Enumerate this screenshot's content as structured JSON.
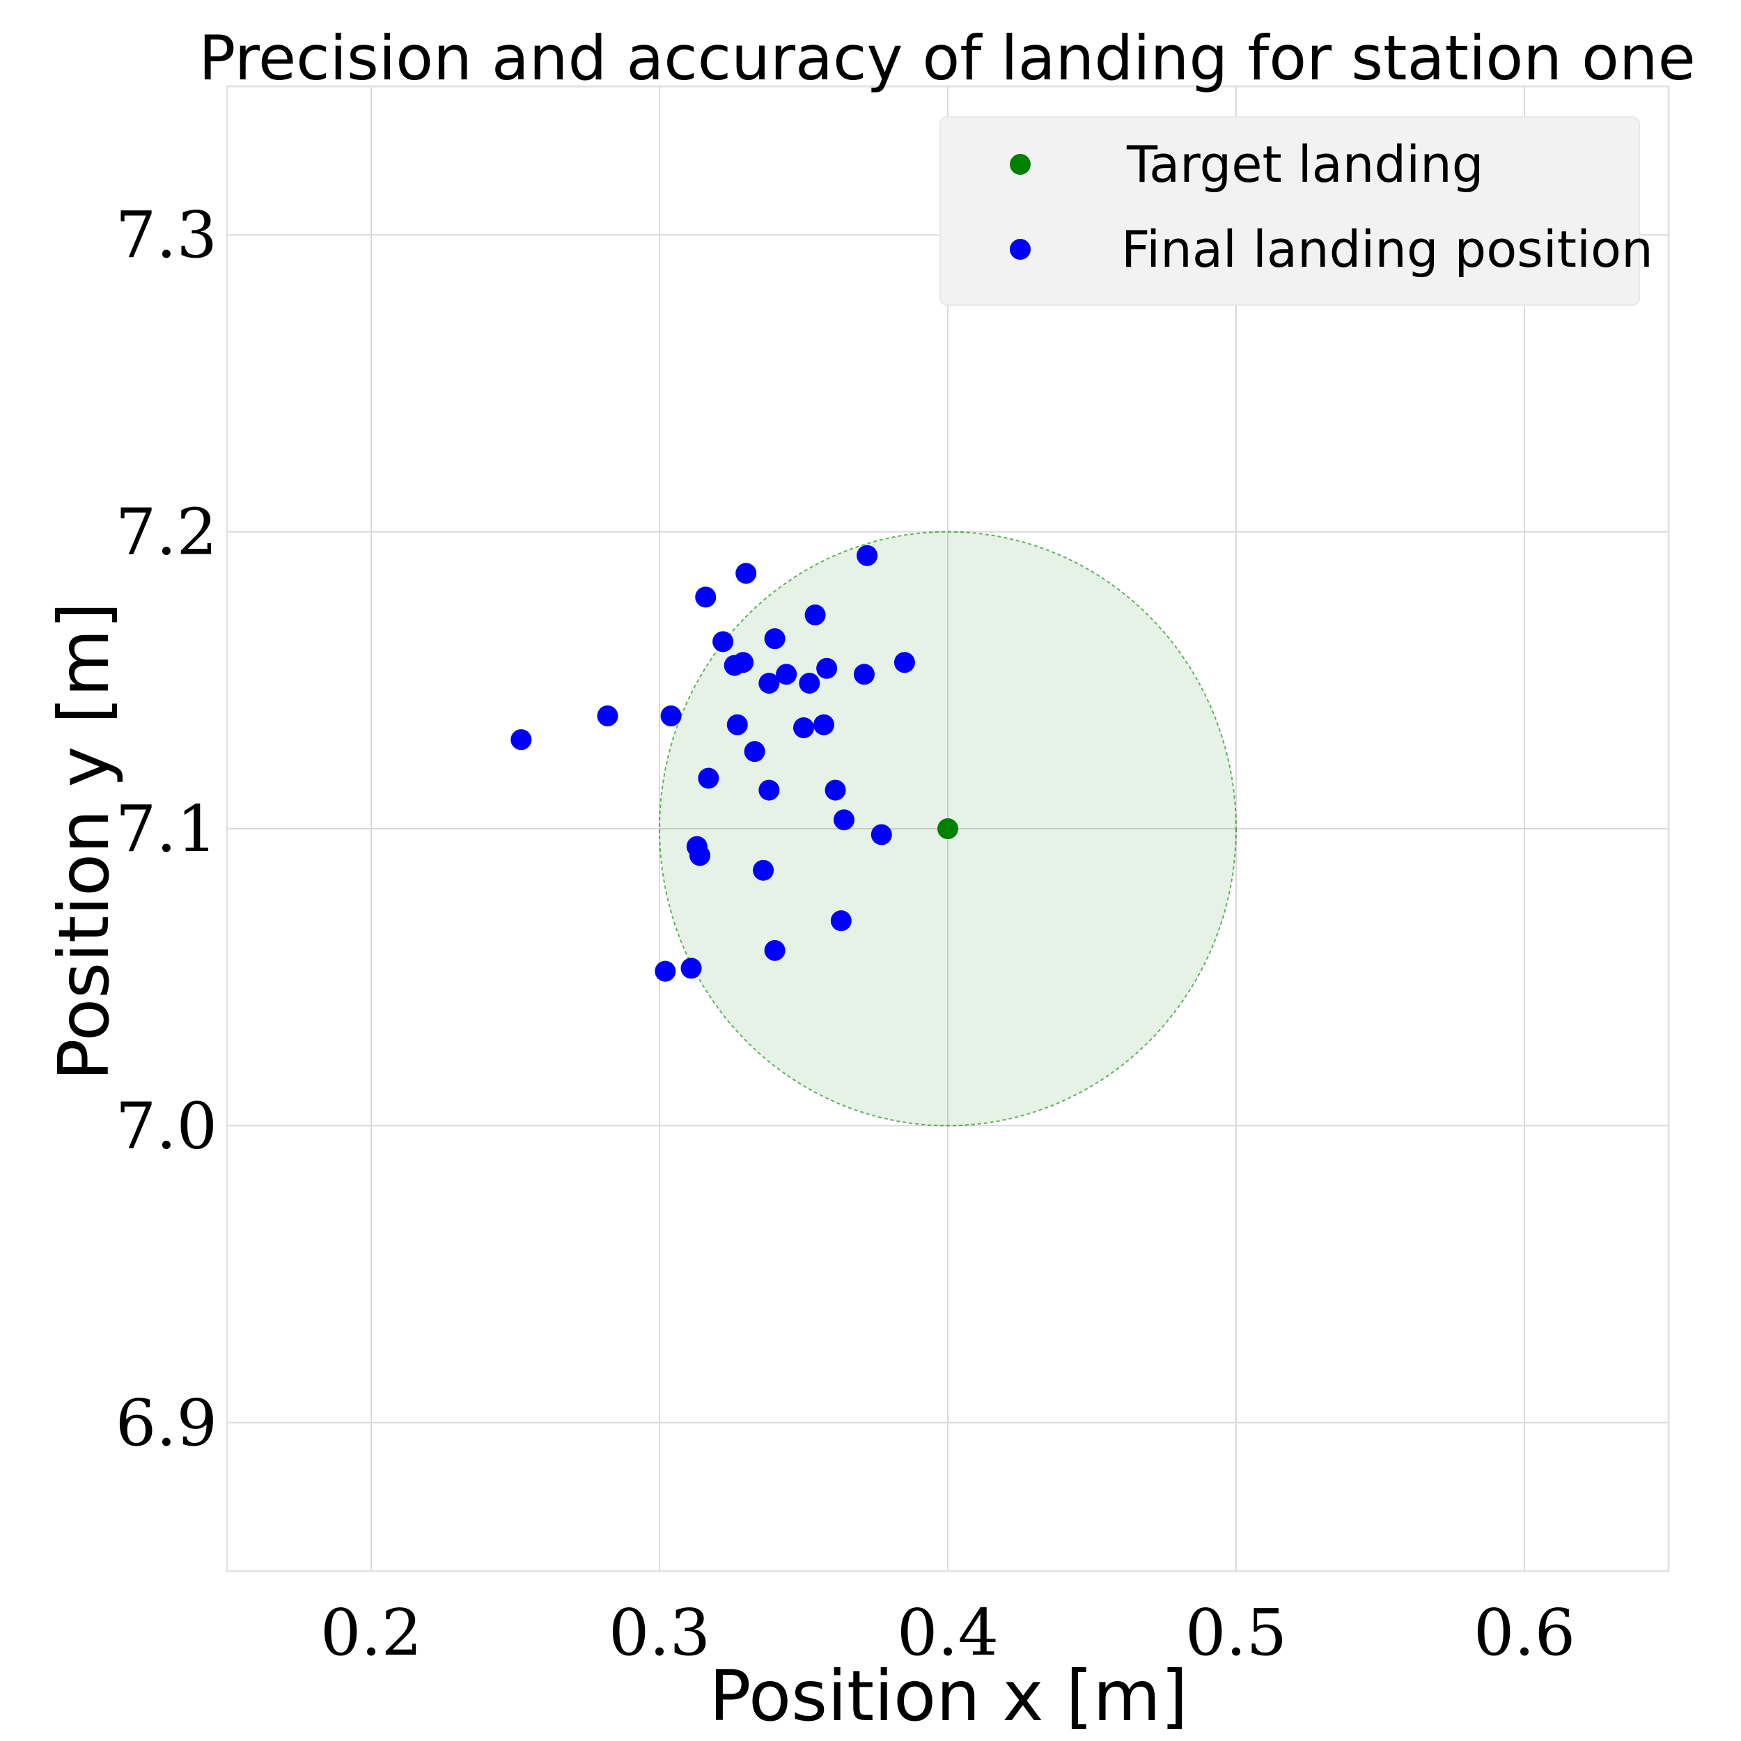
{
  "chart_data": {
    "type": "scatter",
    "title": "Precision and accuracy of landing for station one",
    "xlabel": "Position x [m]",
    "ylabel": "Position y [m]",
    "xlim": [
      0.15,
      0.65
    ],
    "ylim": [
      6.85,
      7.35
    ],
    "x_ticks": [
      "0.2",
      "0.3",
      "0.4",
      "0.5",
      "0.6"
    ],
    "x_tick_values": [
      0.2,
      0.3,
      0.4,
      0.5,
      0.6
    ],
    "y_ticks": [
      "6.9",
      "7.0",
      "7.1",
      "7.2",
      "7.3"
    ],
    "y_tick_values": [
      6.9,
      7.0,
      7.1,
      7.2,
      7.3
    ],
    "grid": true,
    "legend_position": "top-right",
    "tolerance_circle": {
      "center": [
        0.4,
        7.1
      ],
      "radius": 0.1,
      "color": "#008000"
    },
    "series": [
      {
        "name": "Target landing",
        "color": "#008000",
        "points": [
          [
            0.4,
            7.1
          ]
        ]
      },
      {
        "name": "Final landing position",
        "color": "#0000ff",
        "points": [
          [
            0.252,
            7.13
          ],
          [
            0.282,
            7.138
          ],
          [
            0.302,
            7.052
          ],
          [
            0.304,
            7.138
          ],
          [
            0.311,
            7.053
          ],
          [
            0.313,
            7.094
          ],
          [
            0.314,
            7.091
          ],
          [
            0.316,
            7.178
          ],
          [
            0.317,
            7.117
          ],
          [
            0.322,
            7.163
          ],
          [
            0.326,
            7.155
          ],
          [
            0.327,
            7.135
          ],
          [
            0.329,
            7.156
          ],
          [
            0.33,
            7.186
          ],
          [
            0.333,
            7.126
          ],
          [
            0.336,
            7.086
          ],
          [
            0.338,
            7.149
          ],
          [
            0.338,
            7.113
          ],
          [
            0.34,
            7.164
          ],
          [
            0.34,
            7.059
          ],
          [
            0.344,
            7.152
          ],
          [
            0.35,
            7.134
          ],
          [
            0.352,
            7.149
          ],
          [
            0.354,
            7.172
          ],
          [
            0.357,
            7.135
          ],
          [
            0.358,
            7.154
          ],
          [
            0.361,
            7.113
          ],
          [
            0.363,
            7.069
          ],
          [
            0.364,
            7.103
          ],
          [
            0.371,
            7.152
          ],
          [
            0.372,
            7.192
          ],
          [
            0.377,
            7.098
          ],
          [
            0.385,
            7.156
          ]
        ]
      }
    ]
  }
}
